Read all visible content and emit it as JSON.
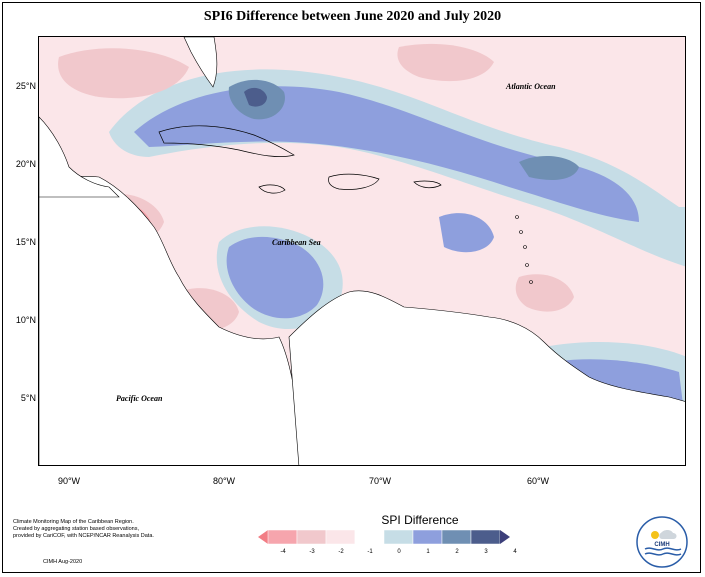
{
  "title": "SPI6 Difference between June 2020 and July 2020",
  "y_axis": [
    "25°N",
    "20°N",
    "15°N",
    "10°N",
    "5°N"
  ],
  "x_axis": [
    "90°W",
    "80°W",
    "70°W",
    "60°W"
  ],
  "map_labels": {
    "atlantic": "Atlantic Ocean",
    "caribbean": "Caribbean Sea",
    "pacific": "Pacific Ocean"
  },
  "credits": {
    "line1": "Climate Monitoring Map of the Caribbean Region.",
    "line2": "Created by aggregating station based observations,",
    "line3": "provided by CariCOF, with NCEP/NCAR Reanalysis Data.",
    "date": "CIMH Aug-2020"
  },
  "legend": {
    "title": "SPI Difference",
    "ticks": [
      "-4",
      "-3",
      "-2",
      "-1",
      "0",
      "1",
      "2",
      "3",
      "4"
    ],
    "colors": [
      "#f27d85",
      "#f6a5ad",
      "#f1c8cc",
      "#fbe6e9",
      "#ffffff",
      "#c6dde6",
      "#8e9fdd",
      "#6f8fb3",
      "#4c5d8c",
      "#3c3f7a"
    ]
  },
  "logo_text": "CIMH"
}
